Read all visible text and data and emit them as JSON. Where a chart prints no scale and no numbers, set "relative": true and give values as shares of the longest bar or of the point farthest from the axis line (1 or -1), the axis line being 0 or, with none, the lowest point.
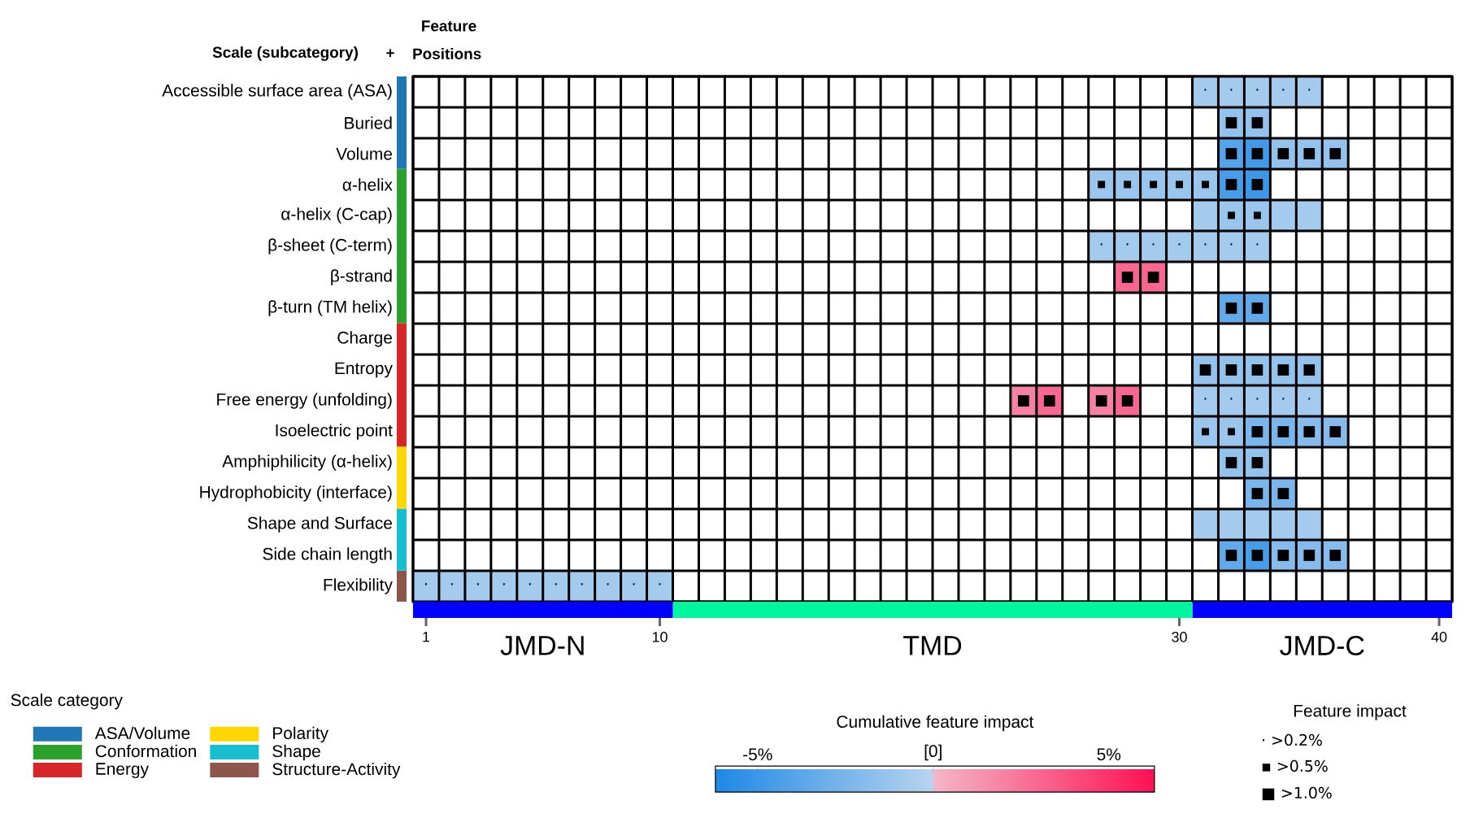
{
  "chart_data": [
    {
      "type": "heatmap",
      "categories": [
        null,
        null,
        null,
        null,
        null,
        null,
        null,
        null,
        null,
        null,
        null,
        null,
        null,
        null,
        null,
        null,
        null,
        null,
        null,
        null,
        null,
        null,
        null,
        null,
        null,
        null,
        null,
        null,
        null,
        null,
        null,
        null,
        null,
        null,
        null,
        null,
        null,
        null,
        null,
        null
      ],
      "tick_labels": "y",
      "y_categories": [
        "Accessible surface area (ASA)",
        "Buried",
        "Volume",
        "α-helix",
        "α-helix (C-cap)",
        "β-sheet (C-term)",
        "β-strand",
        "β-turn (TM helix)",
        "Charge",
        "Entropy",
        "Free energy (unfolding)",
        "Isoelectric point",
        "Amphiphilicity (α-helix)",
        "Hydrophobicity (interface)",
        "Shape and Surface",
        "Side chain length",
        "Flexibility"
      ],
      "cells": [
        [
          null,
          null,
          null,
          null,
          null,
          null,
          null,
          null,
          null,
          null,
          null,
          null,
          null,
          null,
          null,
          null,
          null,
          null,
          null,
          null,
          null,
          null,
          null,
          null,
          null,
          null,
          null,
          null,
          null,
          null,
          -0.8,
          -0.8,
          -0.8,
          -0.8,
          -0.8,
          null,
          null,
          null,
          null,
          null
        ],
        [
          null,
          null,
          null,
          null,
          null,
          null,
          null,
          null,
          null,
          null,
          null,
          null,
          null,
          null,
          null,
          null,
          null,
          null,
          null,
          null,
          null,
          null,
          null,
          null,
          null,
          null,
          null,
          null,
          null,
          null,
          null,
          -1.5,
          -1.5,
          null,
          null,
          null,
          null,
          null,
          null,
          null
        ],
        [
          null,
          null,
          null,
          null,
          null,
          null,
          null,
          null,
          null,
          null,
          null,
          null,
          null,
          null,
          null,
          null,
          null,
          null,
          null,
          null,
          null,
          null,
          null,
          null,
          null,
          null,
          null,
          null,
          null,
          null,
          null,
          -4,
          -4.8,
          -1.5,
          -1.5,
          -1.5,
          null,
          null,
          null,
          null
        ],
        [
          null,
          null,
          null,
          null,
          null,
          null,
          null,
          null,
          null,
          null,
          null,
          null,
          null,
          null,
          null,
          null,
          null,
          null,
          null,
          null,
          null,
          null,
          null,
          null,
          null,
          null,
          -1.2,
          -1.2,
          -1.2,
          -1.2,
          -1.2,
          -4.5,
          -5,
          null,
          null,
          null,
          null,
          null,
          null,
          null
        ],
        [
          null,
          null,
          null,
          null,
          null,
          null,
          null,
          null,
          null,
          null,
          null,
          null,
          null,
          null,
          null,
          null,
          null,
          null,
          null,
          null,
          null,
          null,
          null,
          null,
          null,
          null,
          null,
          null,
          null,
          null,
          -0.8,
          -1.2,
          -1.2,
          -0.8,
          -0.8,
          null,
          null,
          null,
          null,
          null
        ],
        [
          null,
          null,
          null,
          null,
          null,
          null,
          null,
          null,
          null,
          null,
          null,
          null,
          null,
          null,
          null,
          null,
          null,
          null,
          null,
          null,
          null,
          null,
          null,
          null,
          null,
          null,
          -0.8,
          -0.8,
          -0.8,
          -0.8,
          -0.8,
          -0.8,
          -0.8,
          null,
          null,
          null,
          null,
          null,
          null,
          null
        ],
        [
          null,
          null,
          null,
          null,
          null,
          null,
          null,
          null,
          null,
          null,
          null,
          null,
          null,
          null,
          null,
          null,
          null,
          null,
          null,
          null,
          null,
          null,
          null,
          null,
          null,
          null,
          null,
          3,
          3,
          null,
          null,
          null,
          null,
          null,
          null,
          null,
          null,
          null,
          null,
          null
        ],
        [
          null,
          null,
          null,
          null,
          null,
          null,
          null,
          null,
          null,
          null,
          null,
          null,
          null,
          null,
          null,
          null,
          null,
          null,
          null,
          null,
          null,
          null,
          null,
          null,
          null,
          null,
          null,
          null,
          null,
          null,
          null,
          -3.5,
          -3.5,
          null,
          null,
          null,
          null,
          null,
          null,
          null
        ],
        [
          null,
          null,
          null,
          null,
          null,
          null,
          null,
          null,
          null,
          null,
          null,
          null,
          null,
          null,
          null,
          null,
          null,
          null,
          null,
          null,
          null,
          null,
          null,
          null,
          null,
          null,
          null,
          null,
          null,
          null,
          null,
          null,
          null,
          null,
          null,
          null,
          null,
          null,
          null,
          null
        ],
        [
          null,
          null,
          null,
          null,
          null,
          null,
          null,
          null,
          null,
          null,
          null,
          null,
          null,
          null,
          null,
          null,
          null,
          null,
          null,
          null,
          null,
          null,
          null,
          null,
          null,
          null,
          null,
          null,
          null,
          null,
          -1.5,
          -1.5,
          -1.5,
          -1.5,
          -1.5,
          null,
          null,
          null,
          null,
          null
        ],
        [
          null,
          null,
          null,
          null,
          null,
          null,
          null,
          null,
          null,
          null,
          null,
          null,
          null,
          null,
          null,
          null,
          null,
          null,
          null,
          null,
          null,
          null,
          null,
          2,
          3,
          null,
          2,
          3,
          null,
          null,
          -0.8,
          -0.8,
          -0.8,
          -0.8,
          -0.8,
          null,
          null,
          null,
          null,
          null
        ],
        [
          null,
          null,
          null,
          null,
          null,
          null,
          null,
          null,
          null,
          null,
          null,
          null,
          null,
          null,
          null,
          null,
          null,
          null,
          null,
          null,
          null,
          null,
          null,
          null,
          null,
          null,
          null,
          null,
          null,
          null,
          -1.2,
          -1.2,
          -2.5,
          -2.5,
          -2,
          -2,
          null,
          null,
          null,
          null
        ],
        [
          null,
          null,
          null,
          null,
          null,
          null,
          null,
          null,
          null,
          null,
          null,
          null,
          null,
          null,
          null,
          null,
          null,
          null,
          null,
          null,
          null,
          null,
          null,
          null,
          null,
          null,
          null,
          null,
          null,
          null,
          null,
          -1.5,
          -1.5,
          null,
          null,
          null,
          null,
          null,
          null,
          null
        ],
        [
          null,
          null,
          null,
          null,
          null,
          null,
          null,
          null,
          null,
          null,
          null,
          null,
          null,
          null,
          null,
          null,
          null,
          null,
          null,
          null,
          null,
          null,
          null,
          null,
          null,
          null,
          null,
          null,
          null,
          null,
          null,
          null,
          -2.5,
          -2.5,
          null,
          null,
          null,
          null,
          null,
          null
        ],
        [
          null,
          null,
          null,
          null,
          null,
          null,
          null,
          null,
          null,
          null,
          null,
          null,
          null,
          null,
          null,
          null,
          null,
          null,
          null,
          null,
          null,
          null,
          null,
          null,
          null,
          null,
          null,
          null,
          null,
          null,
          -0.8,
          -0.8,
          -0.8,
          -0.8,
          -0.8,
          null,
          null,
          null,
          null,
          null
        ],
        [
          null,
          null,
          null,
          null,
          null,
          null,
          null,
          null,
          null,
          null,
          null,
          null,
          null,
          null,
          null,
          null,
          null,
          null,
          null,
          null,
          null,
          null,
          null,
          null,
          null,
          null,
          null,
          null,
          null,
          null,
          null,
          -3.5,
          -4.5,
          -2,
          -2,
          -2,
          null,
          null,
          null,
          null
        ],
        [
          -0.8,
          -0.8,
          -0.8,
          -0.8,
          -0.8,
          -0.8,
          -0.8,
          -0.8,
          -0.8,
          -0.8,
          null,
          null,
          null,
          null,
          null,
          null,
          null,
          null,
          null,
          null,
          null,
          null,
          null,
          null,
          null,
          null,
          null,
          null,
          null,
          null,
          null,
          null,
          null,
          null,
          null,
          null,
          null,
          null,
          null,
          null
        ]
      ],
      "cell_labels": [
        [
          null,
          null,
          null,
          null,
          null,
          null,
          null,
          null,
          null,
          null,
          null,
          null,
          null,
          null,
          null,
          null,
          null,
          null,
          null,
          null,
          null,
          null,
          null,
          null,
          null,
          null,
          null,
          null,
          null,
          null,
          "·",
          "·",
          "·",
          "·",
          "·",
          null,
          null,
          null,
          null,
          null
        ],
        [
          null,
          null,
          null,
          null,
          null,
          null,
          null,
          null,
          null,
          null,
          null,
          null,
          null,
          null,
          null,
          null,
          null,
          null,
          null,
          null,
          null,
          null,
          null,
          null,
          null,
          null,
          null,
          null,
          null,
          null,
          null,
          "■",
          "■",
          null,
          null,
          null,
          null,
          null,
          null,
          null
        ],
        [
          null,
          null,
          null,
          null,
          null,
          null,
          null,
          null,
          null,
          null,
          null,
          null,
          null,
          null,
          null,
          null,
          null,
          null,
          null,
          null,
          null,
          null,
          null,
          null,
          null,
          null,
          null,
          null,
          null,
          null,
          null,
          "■",
          "■",
          "■",
          "■",
          "■",
          null,
          null,
          null,
          null
        ],
        [
          null,
          null,
          null,
          null,
          null,
          null,
          null,
          null,
          null,
          null,
          null,
          null,
          null,
          null,
          null,
          null,
          null,
          null,
          null,
          null,
          null,
          null,
          null,
          null,
          null,
          null,
          "▪",
          "▪",
          "▪",
          "▪",
          "▪",
          "■",
          "■",
          null,
          null,
          null,
          null,
          null,
          null,
          null
        ],
        [
          null,
          null,
          null,
          null,
          null,
          null,
          null,
          null,
          null,
          null,
          null,
          null,
          null,
          null,
          null,
          null,
          null,
          null,
          null,
          null,
          null,
          null,
          null,
          null,
          null,
          null,
          null,
          null,
          null,
          null,
          null,
          "▪",
          "▪",
          null,
          null,
          null,
          null,
          null,
          null,
          null
        ],
        [
          null,
          null,
          null,
          null,
          null,
          null,
          null,
          null,
          null,
          null,
          null,
          null,
          null,
          null,
          null,
          null,
          null,
          null,
          null,
          null,
          null,
          null,
          null,
          null,
          null,
          null,
          "·",
          "·",
          "·",
          "·",
          "·",
          "·",
          "·",
          null,
          null,
          null,
          null,
          null,
          null,
          null
        ],
        [
          null,
          null,
          null,
          null,
          null,
          null,
          null,
          null,
          null,
          null,
          null,
          null,
          null,
          null,
          null,
          null,
          null,
          null,
          null,
          null,
          null,
          null,
          null,
          null,
          null,
          null,
          null,
          "■",
          "■",
          null,
          null,
          null,
          null,
          null,
          null,
          null,
          null,
          null,
          null,
          null
        ],
        [
          null,
          null,
          null,
          null,
          null,
          null,
          null,
          null,
          null,
          null,
          null,
          null,
          null,
          null,
          null,
          null,
          null,
          null,
          null,
          null,
          null,
          null,
          null,
          null,
          null,
          null,
          null,
          null,
          null,
          null,
          null,
          "■",
          "■",
          null,
          null,
          null,
          null,
          null,
          null,
          null
        ],
        [
          null,
          null,
          null,
          null,
          null,
          null,
          null,
          null,
          null,
          null,
          null,
          null,
          null,
          null,
          null,
          null,
          null,
          null,
          null,
          null,
          null,
          null,
          null,
          null,
          null,
          null,
          null,
          null,
          null,
          null,
          null,
          null,
          null,
          null,
          null,
          null,
          null,
          null,
          null,
          null
        ],
        [
          null,
          null,
          null,
          null,
          null,
          null,
          null,
          null,
          null,
          null,
          null,
          null,
          null,
          null,
          null,
          null,
          null,
          null,
          null,
          null,
          null,
          null,
          null,
          null,
          null,
          null,
          null,
          null,
          null,
          null,
          "■",
          "■",
          "■",
          "■",
          "■",
          null,
          null,
          null,
          null,
          null
        ],
        [
          null,
          null,
          null,
          null,
          null,
          null,
          null,
          null,
          null,
          null,
          null,
          null,
          null,
          null,
          null,
          null,
          null,
          null,
          null,
          null,
          null,
          null,
          null,
          "■",
          "■",
          null,
          "■",
          "■",
          null,
          null,
          "·",
          "·",
          "·",
          "·",
          "·",
          null,
          null,
          null,
          null,
          null
        ],
        [
          null,
          null,
          null,
          null,
          null,
          null,
          null,
          null,
          null,
          null,
          null,
          null,
          null,
          null,
          null,
          null,
          null,
          null,
          null,
          null,
          null,
          null,
          null,
          null,
          null,
          null,
          null,
          null,
          null,
          null,
          "▪",
          "▪",
          "■",
          "■",
          "■",
          "■",
          null,
          null,
          null,
          null
        ],
        [
          null,
          null,
          null,
          null,
          null,
          null,
          null,
          null,
          null,
          null,
          null,
          null,
          null,
          null,
          null,
          null,
          null,
          null,
          null,
          null,
          null,
          null,
          null,
          null,
          null,
          null,
          null,
          null,
          null,
          null,
          null,
          "■",
          "■",
          null,
          null,
          null,
          null,
          null,
          null,
          null
        ],
        [
          null,
          null,
          null,
          null,
          null,
          null,
          null,
          null,
          null,
          null,
          null,
          null,
          null,
          null,
          null,
          null,
          null,
          null,
          null,
          null,
          null,
          null,
          null,
          null,
          null,
          null,
          null,
          null,
          null,
          null,
          null,
          null,
          "■",
          "■",
          null,
          null,
          null,
          null,
          null,
          null
        ],
        [
          null,
          null,
          null,
          null,
          null,
          null,
          null,
          null,
          null,
          null,
          null,
          null,
          null,
          null,
          null,
          null,
          null,
          null,
          null,
          null,
          null,
          null,
          null,
          null,
          null,
          null,
          null,
          null,
          null,
          null,
          null,
          null,
          null,
          null,
          null,
          null,
          null,
          null,
          null,
          null
        ],
        [
          null,
          null,
          null,
          null,
          null,
          null,
          null,
          null,
          null,
          null,
          null,
          null,
          null,
          null,
          null,
          null,
          null,
          null,
          null,
          null,
          null,
          null,
          null,
          null,
          null,
          null,
          null,
          null,
          null,
          null,
          null,
          "■",
          "■",
          "■",
          "■",
          "■",
          null,
          null,
          null,
          null
        ],
        [
          "·",
          "·",
          "·",
          "·",
          "·",
          "·",
          "·",
          "·",
          "·",
          "·",
          null,
          null,
          null,
          null,
          null,
          null,
          null,
          null,
          null,
          null,
          null,
          null,
          null,
          null,
          null,
          null,
          null,
          null,
          null,
          null,
          null,
          null,
          null,
          null,
          null,
          null,
          null,
          null,
          null,
          null
        ]
      ],
      "clim": [
        -6.2,
        6.3
      ],
      "cticks": [
        {
          "value": -5,
          "label": "-5%"
        },
        {
          "value": 0,
          "label": "[0]"
        },
        {
          "value": 5,
          "label": "5%"
        }
      ],
      "clabel": "Cumulative feature impact",
      "annotations": [
        "Feature",
        "Scale (subcategory)",
        "+",
        "Positions",
        "Feature impact",
        "· >0.2%",
        "▪ >0.5%",
        "■ >1.0%"
      ]
    },
    {
      "type": "bar",
      "orientation": "horizontal",
      "stacked": true,
      "categories": [
        null
      ],
      "xlim": [
        0,
        40
      ],
      "xticks": [
        {
          "value": 0.5,
          "label": "1"
        },
        {
          "value": 9.5,
          "label": "10"
        },
        {
          "value": 29.5,
          "label": "30"
        },
        {
          "value": 39.5,
          "label": "40"
        }
      ],
      "series": [
        {
          "name": "JMD-N",
          "color": "#0000ff",
          "values": [
            10
          ]
        },
        {
          "name": "TMD",
          "color": "#00f5a0",
          "values": [
            20
          ]
        },
        {
          "name": "JMD-C",
          "color": "#0000ff",
          "values": [
            10
          ]
        }
      ]
    },
    {
      "type": "bar",
      "stacked": true,
      "relative": true,
      "categories": [
        null
      ],
      "tick_labels": false,
      "legend": "bottom left",
      "legend_title": "Scale category",
      "series": [
        {
          "name": "Structure-Activity",
          "color": "#8c564b",
          "values": [
            0.059
          ]
        },
        {
          "name": "Shape",
          "color": "#17becf",
          "values": [
            0.118
          ]
        },
        {
          "name": "Polarity",
          "color": "#ffd700",
          "values": [
            0.118
          ]
        },
        {
          "name": "Energy",
          "color": "#d62728",
          "values": [
            0.235
          ]
        },
        {
          "name": "Conformation",
          "color": "#2ca02c",
          "values": [
            0.294
          ]
        },
        {
          "name": "ASA/Volume",
          "color": "#1f77b4",
          "values": [
            0.176
          ]
        }
      ]
    }
  ]
}
